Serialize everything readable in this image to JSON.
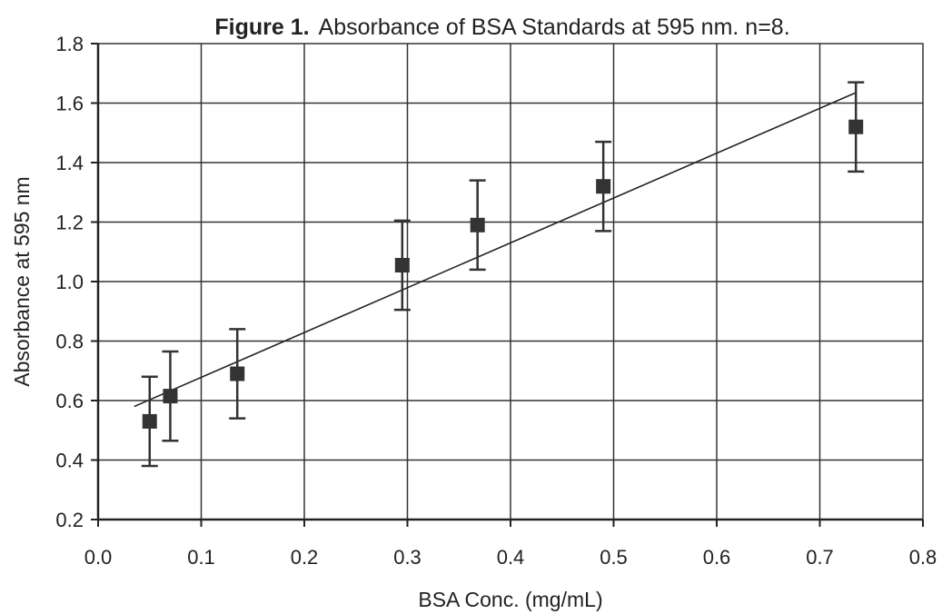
{
  "chart_data": {
    "type": "scatter",
    "title_prefix": "Figure 1.",
    "title": "Absorbance of BSA Standards at 595 nm. n=8.",
    "xlabel": "BSA Conc. (mg/mL)",
    "ylabel": "Absorbance at 595 nm",
    "xlim": [
      0.0,
      0.8
    ],
    "ylim": [
      0.2,
      1.8
    ],
    "x_ticks": [
      "0.0",
      "0.1",
      "0.2",
      "0.3",
      "0.4",
      "0.5",
      "0.6",
      "0.7",
      "0.8"
    ],
    "y_ticks": [
      "0.2",
      "0.4",
      "0.6",
      "0.8",
      "1.0",
      "1.2",
      "1.4",
      "1.6",
      "1.8"
    ],
    "grid": true,
    "marker": "square",
    "points": [
      {
        "x": 0.05,
        "y": 0.53,
        "err": 0.15
      },
      {
        "x": 0.07,
        "y": 0.615,
        "err": 0.15
      },
      {
        "x": 0.135,
        "y": 0.69,
        "err": 0.15
      },
      {
        "x": 0.295,
        "y": 1.055,
        "err": 0.15
      },
      {
        "x": 0.368,
        "y": 1.19,
        "err": 0.15
      },
      {
        "x": 0.49,
        "y": 1.32,
        "err": 0.15
      },
      {
        "x": 0.735,
        "y": 1.52,
        "err": 0.15
      }
    ],
    "trendline": {
      "x": [
        0.035,
        0.735
      ],
      "y": [
        0.58,
        1.635
      ]
    }
  }
}
